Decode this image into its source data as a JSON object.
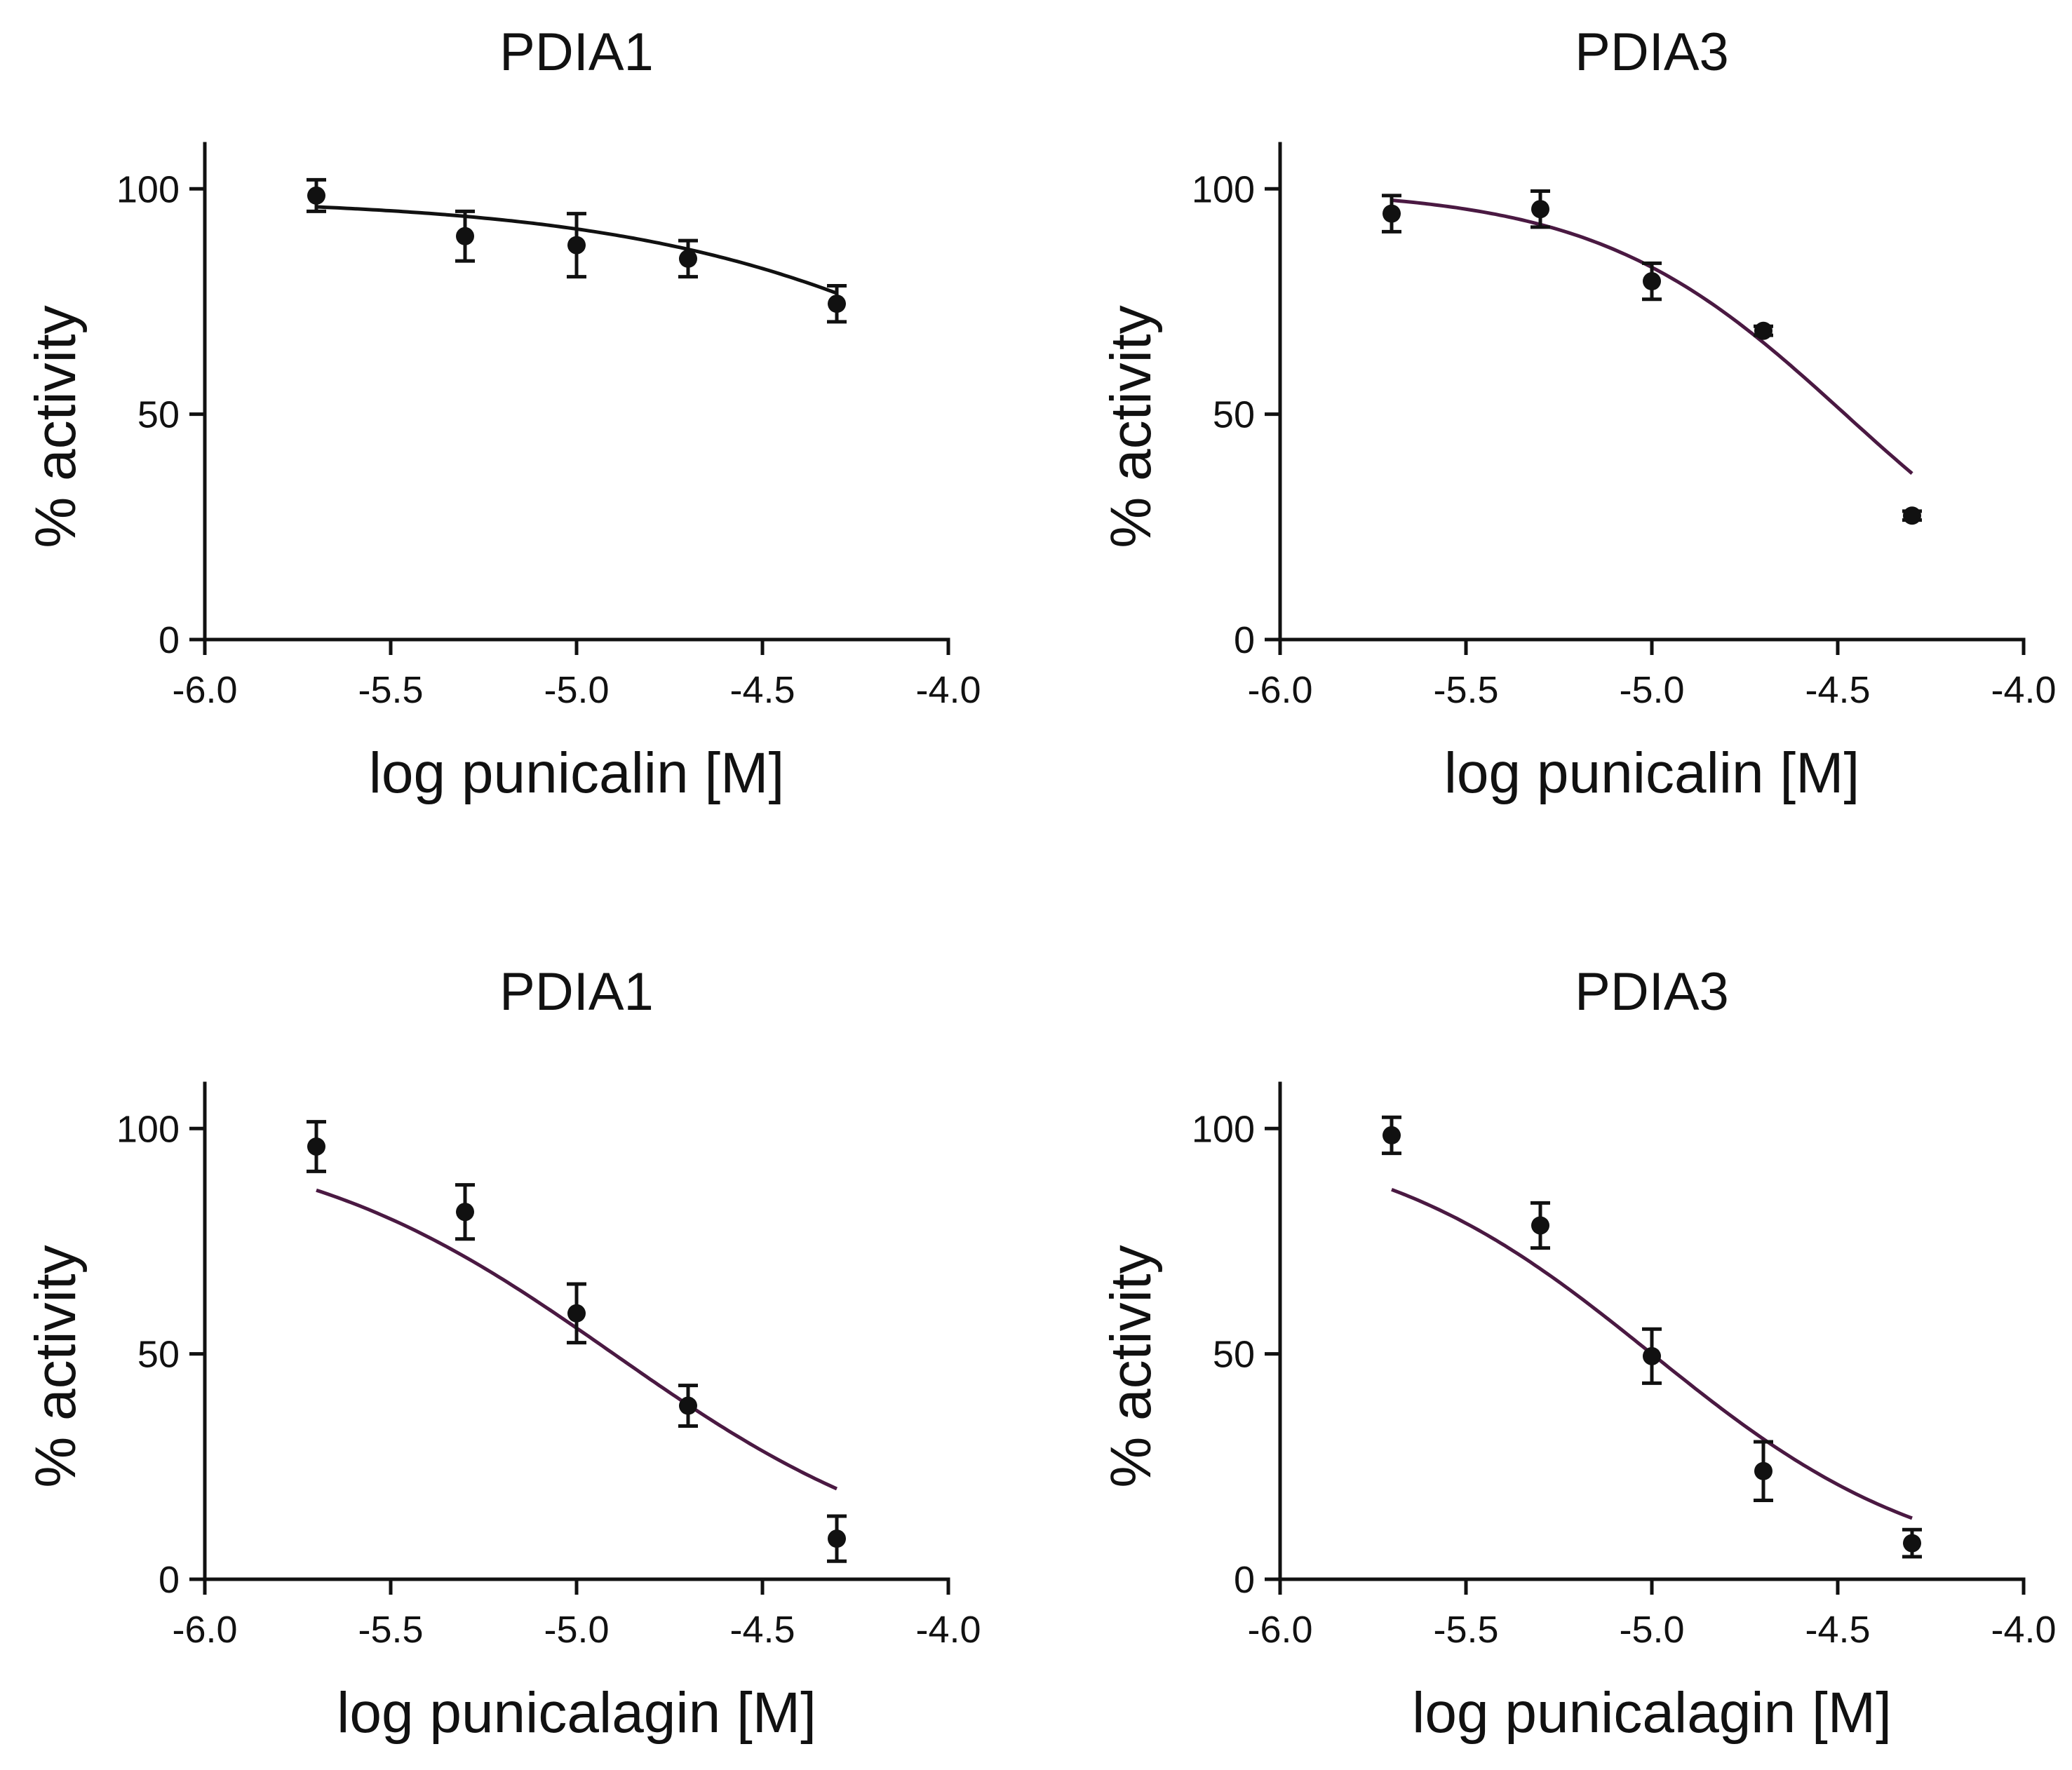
{
  "chart_data": [
    {
      "type": "scatter",
      "title": "PDIA1",
      "xlabel": "log punicalin [M]",
      "ylabel": "% activity",
      "xlim": [
        -6.0,
        -4.0
      ],
      "ylim": [
        0,
        100
      ],
      "xticks": [
        "-6.0",
        "-5.5",
        "-5.0",
        "-4.5",
        "-4.0"
      ],
      "yticks": [
        "0",
        "50",
        "100"
      ],
      "grid": false,
      "curve_color": "#111111",
      "fit": {
        "top": 98,
        "bottom": 0,
        "logIC50": -3.6,
        "hill": 0.8
      },
      "x": [
        -5.7,
        -5.3,
        -5.0,
        -4.7,
        -4.3
      ],
      "y": [
        98.5,
        89.5,
        87.5,
        84.5,
        74.5
      ],
      "err": [
        3.5,
        5.5,
        7.0,
        4.0,
        4.0
      ]
    },
    {
      "type": "scatter",
      "title": "PDIA3",
      "xlabel": "log punicalin [M]",
      "ylabel": "% activity",
      "xlim": [
        -6.0,
        -4.0
      ],
      "ylim": [
        0,
        100
      ],
      "xticks": [
        "-6.0",
        "-5.5",
        "-5.0",
        "-4.5",
        "-4.0"
      ],
      "yticks": [
        "0",
        "50",
        "100"
      ],
      "grid": false,
      "curve_color": "#4a1942",
      "fit": {
        "top": 100,
        "bottom": 0,
        "logIC50": -4.48,
        "hill": 1.3
      },
      "x": [
        -5.7,
        -5.3,
        -5.0,
        -4.7,
        -4.3
      ],
      "y": [
        94.5,
        95.5,
        79.5,
        68.5,
        27.5
      ],
      "err": [
        4.0,
        4.0,
        4.0,
        1.0,
        1.0
      ]
    },
    {
      "type": "scatter",
      "title": "PDIA1",
      "xlabel": "log punicalagin [M]",
      "ylabel": "% activity",
      "xlim": [
        -6.0,
        -4.0
      ],
      "ylim": [
        0,
        100
      ],
      "xticks": [
        "-6.0",
        "-5.5",
        "-5.0",
        "-4.5",
        "-4.0"
      ],
      "yticks": [
        "0",
        "50",
        "100"
      ],
      "grid": false,
      "curve_color": "#4a1942",
      "fit": {
        "top": 100,
        "bottom": 0,
        "logIC50": -4.9,
        "hill": 1.0
      },
      "x": [
        -5.7,
        -5.3,
        -5.0,
        -4.7,
        -4.3
      ],
      "y": [
        96.0,
        81.5,
        59.0,
        38.5,
        9.0
      ],
      "err": [
        5.5,
        6.0,
        6.5,
        4.5,
        5.0
      ]
    },
    {
      "type": "scatter",
      "title": "PDIA3",
      "xlabel": "log punicalagin [M]",
      "ylabel": "% activity",
      "xlim": [
        -6.0,
        -4.0
      ],
      "ylim": [
        0,
        100
      ],
      "xticks": [
        "-6.0",
        "-5.5",
        "-5.0",
        "-4.5",
        "-4.0"
      ],
      "yticks": [
        "0",
        "50",
        "100"
      ],
      "grid": false,
      "curve_color": "#4a1942",
      "fit": {
        "top": 100,
        "bottom": 0,
        "logIC50": -5.0,
        "hill": 1.15
      },
      "x": [
        -5.7,
        -5.3,
        -5.0,
        -4.7,
        -4.3
      ],
      "y": [
        98.5,
        78.5,
        49.5,
        24.0,
        8.0
      ],
      "err": [
        4.0,
        5.0,
        6.0,
        6.5,
        3.0
      ]
    }
  ]
}
